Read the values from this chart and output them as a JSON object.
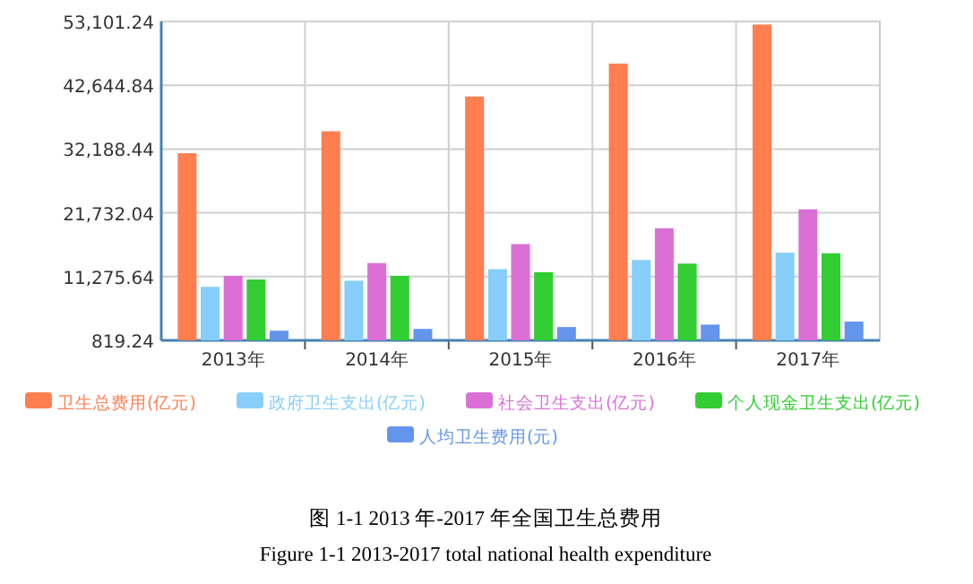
{
  "chart_data": {
    "type": "bar",
    "categories": [
      "2013年",
      "2014年",
      "2015年",
      "2016年",
      "2017年"
    ],
    "series": [
      {
        "name": "卫生总费用(亿元)",
        "color": "#ff7f50",
        "values": [
          31500,
          35100,
          40800,
          46200,
          52600
        ]
      },
      {
        "name": "政府卫生支出(亿元)",
        "color": "#87cefa",
        "values": [
          9600,
          10600,
          12500,
          14000,
          15200
        ]
      },
      {
        "name": "社会卫生支出(亿元)",
        "color": "#da70d6",
        "values": [
          11400,
          13500,
          16600,
          19200,
          22300
        ]
      },
      {
        "name": "个人现金卫生支出(亿元)",
        "color": "#32cd32",
        "values": [
          10800,
          11400,
          12000,
          13400,
          15100
        ]
      },
      {
        "name": "人均卫生费用(元)",
        "color": "#6495ed",
        "values": [
          2400,
          2700,
          3000,
          3400,
          3900
        ]
      }
    ],
    "ylim": [
      819.24,
      53101.24
    ],
    "yticks": [
      {
        "value": 819.24,
        "label": "819.24"
      },
      {
        "value": 11275.64,
        "label": "11,275.64"
      },
      {
        "value": 21732.04,
        "label": "21,732.04"
      },
      {
        "value": 32188.44,
        "label": "32,188.44"
      },
      {
        "value": 42644.84,
        "label": "42,644.84"
      },
      {
        "value": 53101.24,
        "label": "53,101.24"
      }
    ],
    "grid": true,
    "legend": "bottom",
    "annotations": [
      "图 1-1 2013 年-2017 年全国卫生总费用",
      "Figure 1-1 2013-2017 total national health expenditure"
    ]
  }
}
